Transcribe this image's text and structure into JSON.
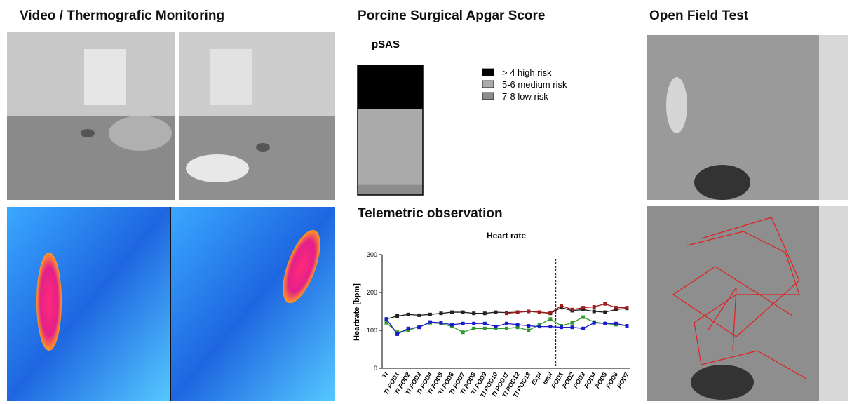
{
  "panels": {
    "video": "Video / Thermografic Monitoring",
    "apgar": "Porcine Surgical Apgar Score",
    "telemetry": "Telemetric observation",
    "openfield": "Open Field Test"
  },
  "chart_data": [
    {
      "type": "stacked-bar",
      "title": "pSAS",
      "series": [
        {
          "name": "> 4 high risk",
          "color": "#000000",
          "values": [
            34
          ]
        },
        {
          "name": "5-6 medium risk",
          "color": "#ababab",
          "values": [
            58
          ]
        },
        {
          "name": "7-8 low risk",
          "color": "#8c8c8c",
          "values": [
            8
          ]
        }
      ]
    },
    {
      "type": "line",
      "title": "Heart rate",
      "ylabel": "Heartrate [bpm]",
      "categories": [
        "TI",
        "TI POD1",
        "TI POD2",
        "TI POD3",
        "TI POD4",
        "TI POD5",
        "TI POD6",
        "TI POD7",
        "TI POD8",
        "TI POD9",
        "TI POD10",
        "TI POD11",
        "TI POD12",
        "TI POD13",
        "Expl",
        "Impl",
        "POD1",
        "POD2",
        "POD3",
        "POD4",
        "POD5",
        "POD6",
        "POD7"
      ],
      "ylim": [
        0,
        300
      ],
      "yticks": [
        0,
        100,
        200,
        300
      ],
      "series": [
        {
          "color": "#222222",
          "values": [
            130,
            138,
            142,
            140,
            142,
            145,
            148,
            148,
            145,
            145,
            148,
            147,
            148,
            150,
            148,
            145,
            160,
            152,
            155,
            150,
            148,
            155,
            158
          ]
        },
        {
          "color": "#a01c1c",
          "values": [
            null,
            null,
            null,
            null,
            null,
            null,
            null,
            null,
            null,
            null,
            null,
            145,
            148,
            150,
            148,
            146,
            165,
            155,
            160,
            162,
            170,
            160,
            160
          ]
        },
        {
          "color": "#2e9a2e",
          "values": [
            120,
            95,
            100,
            110,
            120,
            118,
            110,
            95,
            105,
            105,
            105,
            105,
            108,
            100,
            115,
            130,
            112,
            120,
            135,
            122,
            118,
            115,
            112
          ]
        },
        {
          "color": "#1c1cc8",
          "values": [
            130,
            90,
            105,
            108,
            122,
            120,
            115,
            118,
            118,
            118,
            110,
            118,
            115,
            112,
            110,
            110,
            108,
            108,
            105,
            120,
            118,
            118,
            112
          ]
        }
      ]
    }
  ]
}
